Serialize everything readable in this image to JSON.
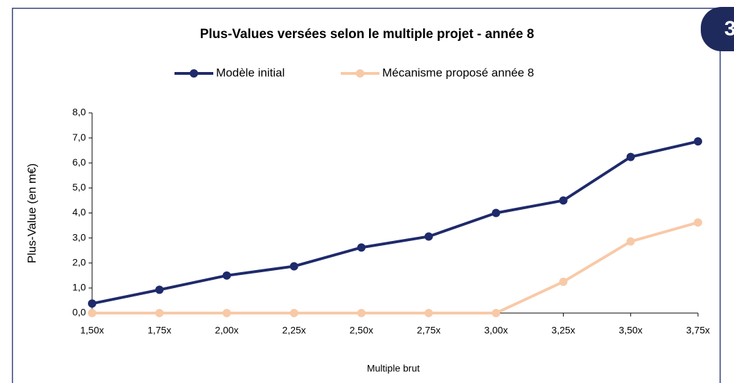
{
  "badge": "3",
  "chart_data": {
    "type": "line",
    "title": "Plus-Values versées selon le multiple projet - année 8",
    "x_label": "Multiple brut",
    "y_label": "Plus-Value (en m€)",
    "categories": [
      "1,50x",
      "1,75x",
      "2,00x",
      "2,25x",
      "2,50x",
      "2,75x",
      "3,00x",
      "3,25x",
      "3,50x",
      "3,75x"
    ],
    "series": [
      {
        "name": "Modèle initial",
        "color": "#1f2a6b",
        "values": [
          0.38,
          0.93,
          1.5,
          1.87,
          2.62,
          3.06,
          4.0,
          4.5,
          6.24,
          6.86
        ]
      },
      {
        "name": "Mécanisme proposé année 8",
        "color": "#f8c9a7",
        "values": [
          0,
          0,
          0,
          0,
          0,
          0,
          0,
          1.25,
          2.86,
          3.62
        ]
      }
    ],
    "ylim": [
      0,
      8
    ],
    "yticks": [
      {
        "value": 0,
        "label": "0,0"
      },
      {
        "value": 1,
        "label": "1,0"
      },
      {
        "value": 2,
        "label": "2,0"
      },
      {
        "value": 3,
        "label": "3,0"
      },
      {
        "value": 4,
        "label": "4,0"
      },
      {
        "value": 5,
        "label": "5,0"
      },
      {
        "value": 6,
        "label": "6,0"
      },
      {
        "value": 7,
        "label": "7,0"
      },
      {
        "value": 8,
        "label": "8,0"
      }
    ],
    "grid": false,
    "legend": "top"
  }
}
